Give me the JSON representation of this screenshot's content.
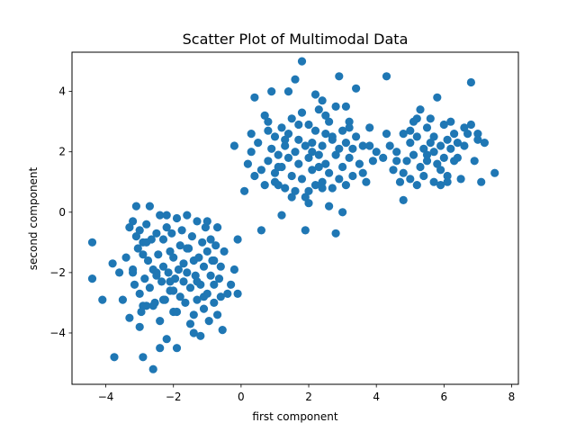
{
  "chart_data": {
    "type": "scatter",
    "title": "Scatter Plot of Multimodal Data",
    "xlabel": "first component",
    "ylabel": "second component",
    "xlim": [
      -5.0,
      8.2
    ],
    "ylim": [
      -5.7,
      5.3
    ],
    "xticks": [
      -4,
      -2,
      0,
      2,
      4,
      6,
      8
    ],
    "yticks": [
      -4,
      -2,
      0,
      2,
      4
    ],
    "xtick_labels": [
      "−4",
      "−2",
      "0",
      "2",
      "4",
      "6",
      "8"
    ],
    "ytick_labels": [
      "−4",
      "−2",
      "0",
      "2",
      "4"
    ],
    "grid": false,
    "marker_color": "#1f77b4",
    "series": [
      {
        "x": [
          -4.4,
          -4.4,
          -4.1,
          -3.8,
          -3.75,
          -3.6,
          -3.5,
          -3.4,
          -3.3,
          -3.3,
          -3.2,
          -3.2,
          -3.15,
          -3.1,
          -3.05,
          -3.0,
          -3.0,
          -2.95,
          -2.9,
          -2.9,
          -2.85,
          -2.8,
          -2.8,
          -2.75,
          -2.7,
          -2.7,
          -2.65,
          -2.6,
          -2.6,
          -2.55,
          -2.5,
          -2.5,
          -2.45,
          -2.4,
          -2.4,
          -2.35,
          -2.3,
          -2.3,
          -2.25,
          -2.2,
          -2.2,
          -2.15,
          -2.1,
          -2.1,
          -2.05,
          -2.0,
          -2.0,
          -1.95,
          -1.9,
          -1.9,
          -1.85,
          -1.8,
          -1.8,
          -1.75,
          -1.7,
          -1.7,
          -1.65,
          -1.6,
          -1.6,
          -1.55,
          -1.5,
          -1.5,
          -1.45,
          -1.4,
          -1.4,
          -1.35,
          -1.3,
          -1.3,
          -1.25,
          -1.2,
          -1.2,
          -1.15,
          -1.1,
          -1.1,
          -1.05,
          -1.0,
          -1.0,
          -0.95,
          -0.9,
          -0.9,
          -0.85,
          -0.8,
          -0.8,
          -0.75,
          -0.7,
          -0.7,
          -0.65,
          -0.6,
          -0.6,
          -0.55,
          -0.5,
          -0.4,
          -0.3,
          -0.2,
          -0.1,
          -0.1,
          -3.0,
          -2.9,
          -2.4,
          -2.2,
          -2.1,
          -2.8,
          -1.0,
          -2.0,
          -3.1,
          -2.6,
          -1.6,
          -1.1,
          -2.5,
          -1.4,
          -2.9,
          -3.2,
          -0.8,
          -1.9,
          -2.3,
          -1.3
        ],
        "y": [
          -1.0,
          -2.2,
          -2.9,
          -1.7,
          -4.8,
          -2.0,
          -2.9,
          -1.5,
          -0.5,
          -3.5,
          -0.3,
          -1.9,
          -2.4,
          0.2,
          -1.2,
          -0.6,
          -2.7,
          -3.3,
          -1.0,
          -4.8,
          -2.2,
          -0.4,
          -3.1,
          -1.6,
          0.2,
          -2.5,
          -0.9,
          -1.9,
          -5.2,
          -3.0,
          -0.7,
          -2.1,
          -1.4,
          -3.6,
          -0.1,
          -2.3,
          -1.8,
          -0.9,
          -2.9,
          -0.5,
          -4.2,
          -2.0,
          -1.3,
          -2.6,
          -0.7,
          -1.5,
          -3.3,
          -2.2,
          -0.2,
          -4.5,
          -1.9,
          -1.1,
          -2.8,
          -0.6,
          -2.3,
          -1.7,
          -3.0,
          -0.1,
          -2.0,
          -1.2,
          -3.7,
          -2.5,
          -0.8,
          -1.6,
          -3.4,
          -2.1,
          -0.3,
          -2.9,
          -1.5,
          -4.1,
          -2.4,
          -1.0,
          -3.2,
          -1.8,
          -0.5,
          -2.7,
          -1.3,
          -3.6,
          -2.1,
          -0.9,
          -1.6,
          -3.0,
          -2.4,
          -1.1,
          -3.4,
          -0.5,
          -2.2,
          -1.8,
          -2.8,
          -3.9,
          -1.3,
          -2.7,
          -2.4,
          -1.9,
          -2.7,
          -0.9,
          -3.8,
          -1.4,
          -4.5,
          -0.1,
          -2.3,
          -1.0,
          -0.3,
          -2.6,
          -0.8,
          -3.1,
          -1.2,
          -2.8,
          -2.0,
          -4.0,
          -3.1,
          -2.0,
          -1.6,
          -3.3,
          -2.9,
          -2.3
        ],
        "name": ""
      },
      {
        "x": [
          0.1,
          0.2,
          0.3,
          0.4,
          0.5,
          0.6,
          0.7,
          0.8,
          0.8,
          0.9,
          1.0,
          1.0,
          1.1,
          1.1,
          1.2,
          1.2,
          1.3,
          1.3,
          1.4,
          1.4,
          1.5,
          1.5,
          1.6,
          1.6,
          1.7,
          1.7,
          1.8,
          1.8,
          1.9,
          1.9,
          2.0,
          2.0,
          2.1,
          2.1,
          2.2,
          2.2,
          2.3,
          2.3,
          2.4,
          2.4,
          2.5,
          2.5,
          2.6,
          2.6,
          2.7,
          2.7,
          2.8,
          2.8,
          2.9,
          2.9,
          3.0,
          3.0,
          3.1,
          3.1,
          3.2,
          3.2,
          3.3,
          3.3,
          3.4,
          3.5,
          3.6,
          3.7,
          3.8,
          3.9,
          4.0,
          0.7,
          1.8,
          2.9,
          -0.2,
          0.4,
          1.4,
          2.4,
          3.4,
          0.9,
          1.6,
          2.2,
          3.1,
          2.0,
          2.6,
          1.2,
          0.6,
          1.9,
          2.8,
          2.4,
          3.0,
          1.5,
          1.0,
          2.3,
          3.6,
          0.3,
          1.7,
          2.1,
          2.7,
          3.2,
          1.3,
          0.8,
          2.5,
          3.8,
          1.1,
          2.0
        ],
        "y": [
          0.7,
          1.6,
          2.0,
          1.2,
          2.3,
          1.4,
          0.9,
          2.7,
          1.7,
          2.1,
          1.3,
          2.5,
          0.9,
          1.9,
          2.8,
          1.5,
          2.2,
          0.8,
          1.8,
          2.6,
          1.2,
          3.1,
          2.0,
          0.7,
          2.4,
          1.6,
          3.3,
          1.1,
          2.2,
          0.5,
          1.8,
          2.9,
          2.3,
          1.4,
          2.7,
          0.9,
          1.9,
          3.4,
          2.2,
          1.0,
          2.6,
          1.6,
          3.0,
          1.3,
          2.4,
          0.8,
          1.9,
          3.5,
          2.1,
          1.1,
          2.7,
          1.5,
          2.3,
          0.9,
          1.8,
          3.0,
          2.1,
          1.2,
          2.5,
          1.6,
          2.2,
          1.0,
          2.8,
          1.7,
          2.0,
          3.2,
          5.0,
          4.5,
          2.2,
          3.8,
          4.0,
          3.7,
          4.1,
          4.0,
          4.4,
          3.9,
          3.5,
          0.3,
          0.2,
          -0.1,
          -0.6,
          -0.6,
          -0.7,
          0.8,
          0.0,
          0.5,
          1.0,
          1.5,
          1.3,
          2.6,
          2.9,
          2.0,
          2.5,
          2.8,
          2.4,
          3.0,
          3.2,
          2.2,
          1.5,
          0.7
        ],
        "name": ""
      },
      {
        "x": [
          4.2,
          4.3,
          4.4,
          4.5,
          4.6,
          4.7,
          4.8,
          4.8,
          4.9,
          5.0,
          5.0,
          5.1,
          5.1,
          5.2,
          5.2,
          5.3,
          5.3,
          5.4,
          5.4,
          5.5,
          5.5,
          5.6,
          5.6,
          5.7,
          5.7,
          5.8,
          5.8,
          5.9,
          5.9,
          6.0,
          6.0,
          6.1,
          6.1,
          6.2,
          6.2,
          6.3,
          6.3,
          6.4,
          6.5,
          6.6,
          6.6,
          6.7,
          6.8,
          6.9,
          7.0,
          7.1,
          7.2,
          7.5,
          6.8,
          5.7,
          4.8,
          5.2,
          6.4,
          5.0,
          5.9,
          4.3,
          6.1,
          7.0,
          5.5,
          4.6
        ],
        "y": [
          1.8,
          4.5,
          2.2,
          1.4,
          2.0,
          1.0,
          2.6,
          0.4,
          1.7,
          2.3,
          1.1,
          3.0,
          1.9,
          0.9,
          2.5,
          1.5,
          3.4,
          2.1,
          1.2,
          2.8,
          1.7,
          3.1,
          2.3,
          1.0,
          2.5,
          1.6,
          3.8,
          2.2,
          0.9,
          2.9,
          1.8,
          2.4,
          1.2,
          3.0,
          2.1,
          1.7,
          2.6,
          2.3,
          1.1,
          2.8,
          2.2,
          2.6,
          4.3,
          1.7,
          2.6,
          1.0,
          2.3,
          1.3,
          2.9,
          2.0,
          1.3,
          3.1,
          1.8,
          2.7,
          1.4,
          2.6,
          1.0,
          2.4,
          1.9,
          1.7
        ],
        "name": ""
      }
    ]
  }
}
